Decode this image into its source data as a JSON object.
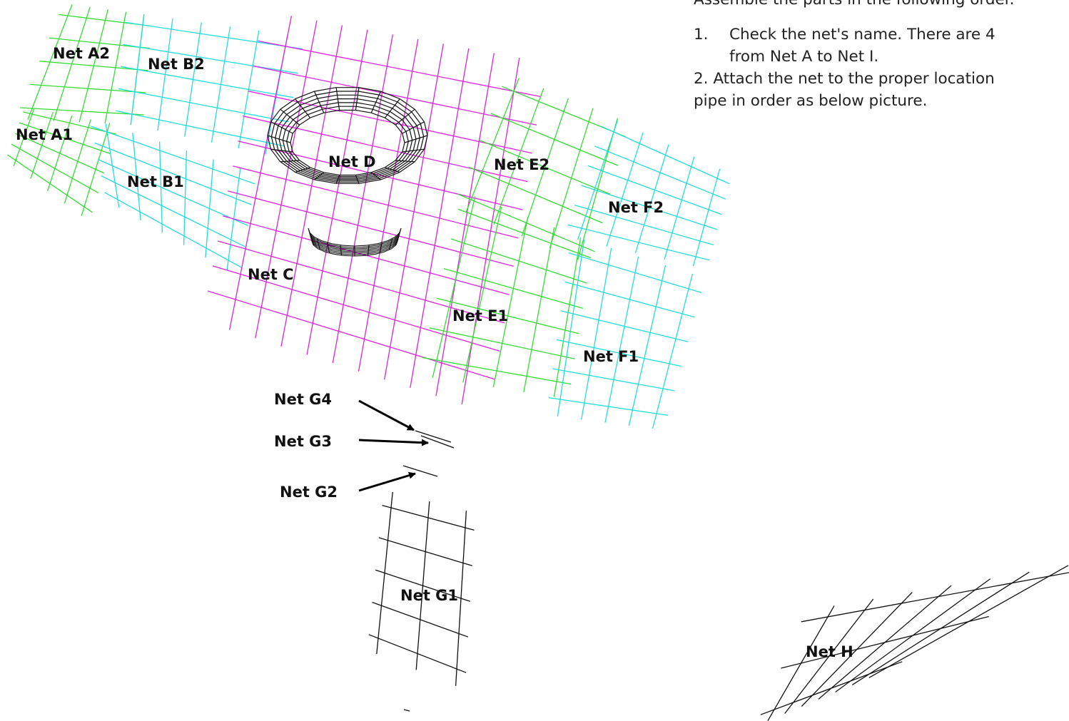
{
  "instructions": {
    "intro": "Assemble the parts in the following order.",
    "step1_number": "1.",
    "step1_line1": "Check the net's name.  There are 4",
    "step1_line2": "from Net A to Net I.",
    "step2_line1": "2. Attach the net to the proper location",
    "step2_line2": "pipe in order as below picture."
  },
  "labels": {
    "a2": "Net A2",
    "b2": "Net B2",
    "a1": "Net A1",
    "b1": "Net B1",
    "d": "Net D",
    "e2": "Net E2",
    "f2": "Net F2",
    "c": "Net C",
    "e1": "Net E1",
    "f1": "Net F1",
    "g4": "Net G4",
    "g3": "Net G3",
    "g2": "Net G2",
    "g1": "Net G1",
    "h": "Net H"
  },
  "colors": {
    "net_a": "#33dd33",
    "net_b": "#22dddd",
    "net_c": "#dd22dd",
    "net_d": "#111111",
    "net_e": "#33dd33",
    "net_f": "#22dddd",
    "net_g": "#111111",
    "net_h": "#111111",
    "arrow": "#000000"
  }
}
